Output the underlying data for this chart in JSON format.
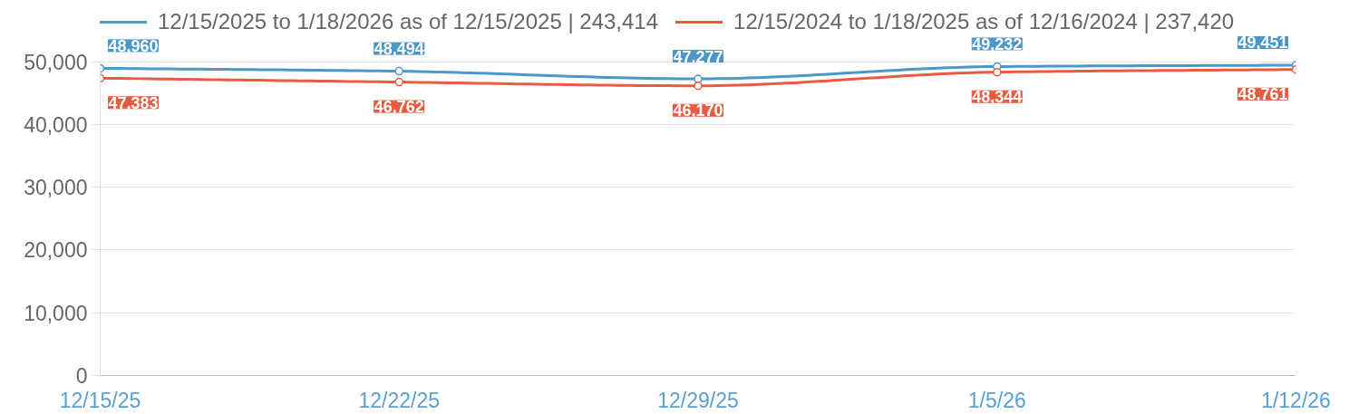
{
  "chart_data": {
    "type": "line",
    "categories": [
      "12/15/25",
      "12/22/25",
      "12/29/25",
      "1/5/26",
      "1/12/26"
    ],
    "series": [
      {
        "name": "12/15/2025 to 1/18/2026 as of 12/15/2025 | 243,414",
        "color": "#4a97c9",
        "values": [
          48960,
          48494,
          47277,
          49232,
          49451
        ],
        "value_labels": [
          "48,960",
          "48,494",
          "47,277",
          "49,232",
          "49,451"
        ]
      },
      {
        "name": "12/15/2024 to 1/18/2025 as of 12/16/2024 | 237,420",
        "color": "#e95b40",
        "values": [
          47383,
          46762,
          46170,
          48344,
          48761
        ],
        "value_labels": [
          "47,383",
          "46,762",
          "46,170",
          "48,344",
          "48,761"
        ]
      }
    ],
    "ylim": [
      0,
      50000
    ],
    "yticks": [
      0,
      {
        "value": 10000,
        "label": "10,000"
      },
      {
        "value": 20000,
        "label": "20,000"
      },
      {
        "value": 30000,
        "label": "30,000"
      },
      {
        "value": 40000,
        "label": "40,000"
      },
      {
        "value": 50000,
        "label": "50,000"
      }
    ],
    "grid": "y",
    "legend": "top",
    "marker": "circle",
    "line_style": "solid"
  }
}
